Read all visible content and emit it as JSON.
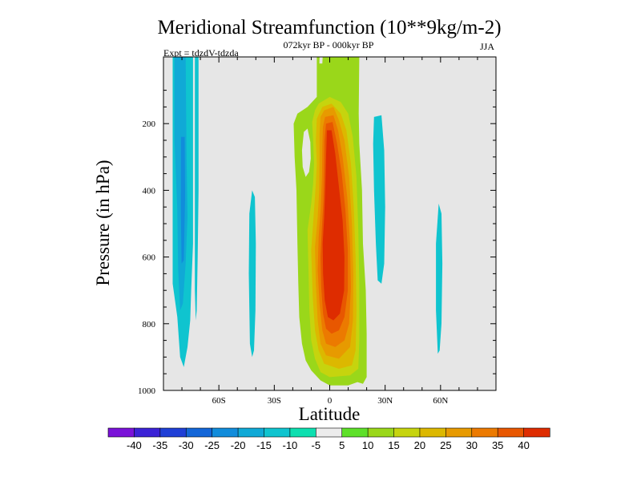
{
  "chart_data": {
    "type": "heatmap",
    "title": "Meridional Streamfunction (10**9kg/m-2)",
    "subtitle_center": "072kyr BP - 000kyr BP",
    "subtitle_left": "Expt = tdzdV-tdzda",
    "subtitle_right": "JJA",
    "xlabel": "Latitude",
    "ylabel": "Pressure (in hPa)",
    "xlim": [
      -90,
      90
    ],
    "ylim": [
      1000,
      0
    ],
    "x_ticks": [
      {
        "value": -60,
        "label": "60S"
      },
      {
        "value": -30,
        "label": "30S"
      },
      {
        "value": 0,
        "label": "0"
      },
      {
        "value": 30,
        "label": "30N"
      },
      {
        "value": 60,
        "label": "60N"
      }
    ],
    "y_ticks": [
      {
        "value": 200,
        "label": "200"
      },
      {
        "value": 400,
        "label": "400"
      },
      {
        "value": 600,
        "label": "600"
      },
      {
        "value": 800,
        "label": "800"
      },
      {
        "value": 1000,
        "label": "1000"
      }
    ],
    "background_color": "#e6e6e6",
    "levels": [
      -40,
      -35,
      -30,
      -25,
      -20,
      -15,
      -10,
      -5,
      5,
      10,
      15,
      20,
      25,
      30,
      35,
      40
    ],
    "level_labels": [
      "-40",
      "-35",
      "-30",
      "-25",
      "-20",
      "-15",
      "-10",
      "-5",
      "5",
      "10",
      "15",
      "20",
      "25",
      "30",
      "35",
      "40"
    ],
    "colorbar_colors": [
      "#7a12d8",
      "#3b22d6",
      "#1f3fd6",
      "#1366d8",
      "#118cdb",
      "#10a9d6",
      "#0fc4cf",
      "#0ddfb0",
      "#ececec",
      "#5ee02a",
      "#9ad71a",
      "#c6d40e",
      "#dcb800",
      "#e79a00",
      "#ec7a00",
      "#e85700",
      "#de2c00"
    ],
    "features": [
      {
        "name": "sh-high-lat-negative",
        "sign": "negative",
        "lat_range": [
          -85,
          -74
        ],
        "p_range": [
          0,
          930
        ],
        "levels": [
          -10,
          -15,
          -20
        ]
      },
      {
        "name": "sh-narrow-negative",
        "sign": "negative",
        "lat_range": [
          -73,
          -71
        ],
        "p_range": [
          0,
          790
        ],
        "levels": [
          -10
        ]
      },
      {
        "name": "sh-midlat-negative",
        "sign": "negative",
        "lat_range": [
          -44,
          -40
        ],
        "p_range": [
          400,
          900
        ],
        "levels": [
          -10
        ]
      },
      {
        "name": "tropical-positive-cell",
        "sign": "positive",
        "lat_range": [
          -19,
          20
        ],
        "p_range": [
          0,
          980
        ],
        "levels": [
          10,
          15,
          20,
          25,
          30,
          35,
          40
        ]
      },
      {
        "name": "nh-subtropical-negative",
        "sign": "negative",
        "lat_range": [
          22,
          30
        ],
        "p_range": [
          180,
          680
        ],
        "levels": [
          -10
        ]
      },
      {
        "name": "nh-high-lat-negative",
        "sign": "negative",
        "lat_range": [
          57,
          61
        ],
        "p_range": [
          430,
          890
        ],
        "levels": [
          -10
        ]
      }
    ]
  }
}
